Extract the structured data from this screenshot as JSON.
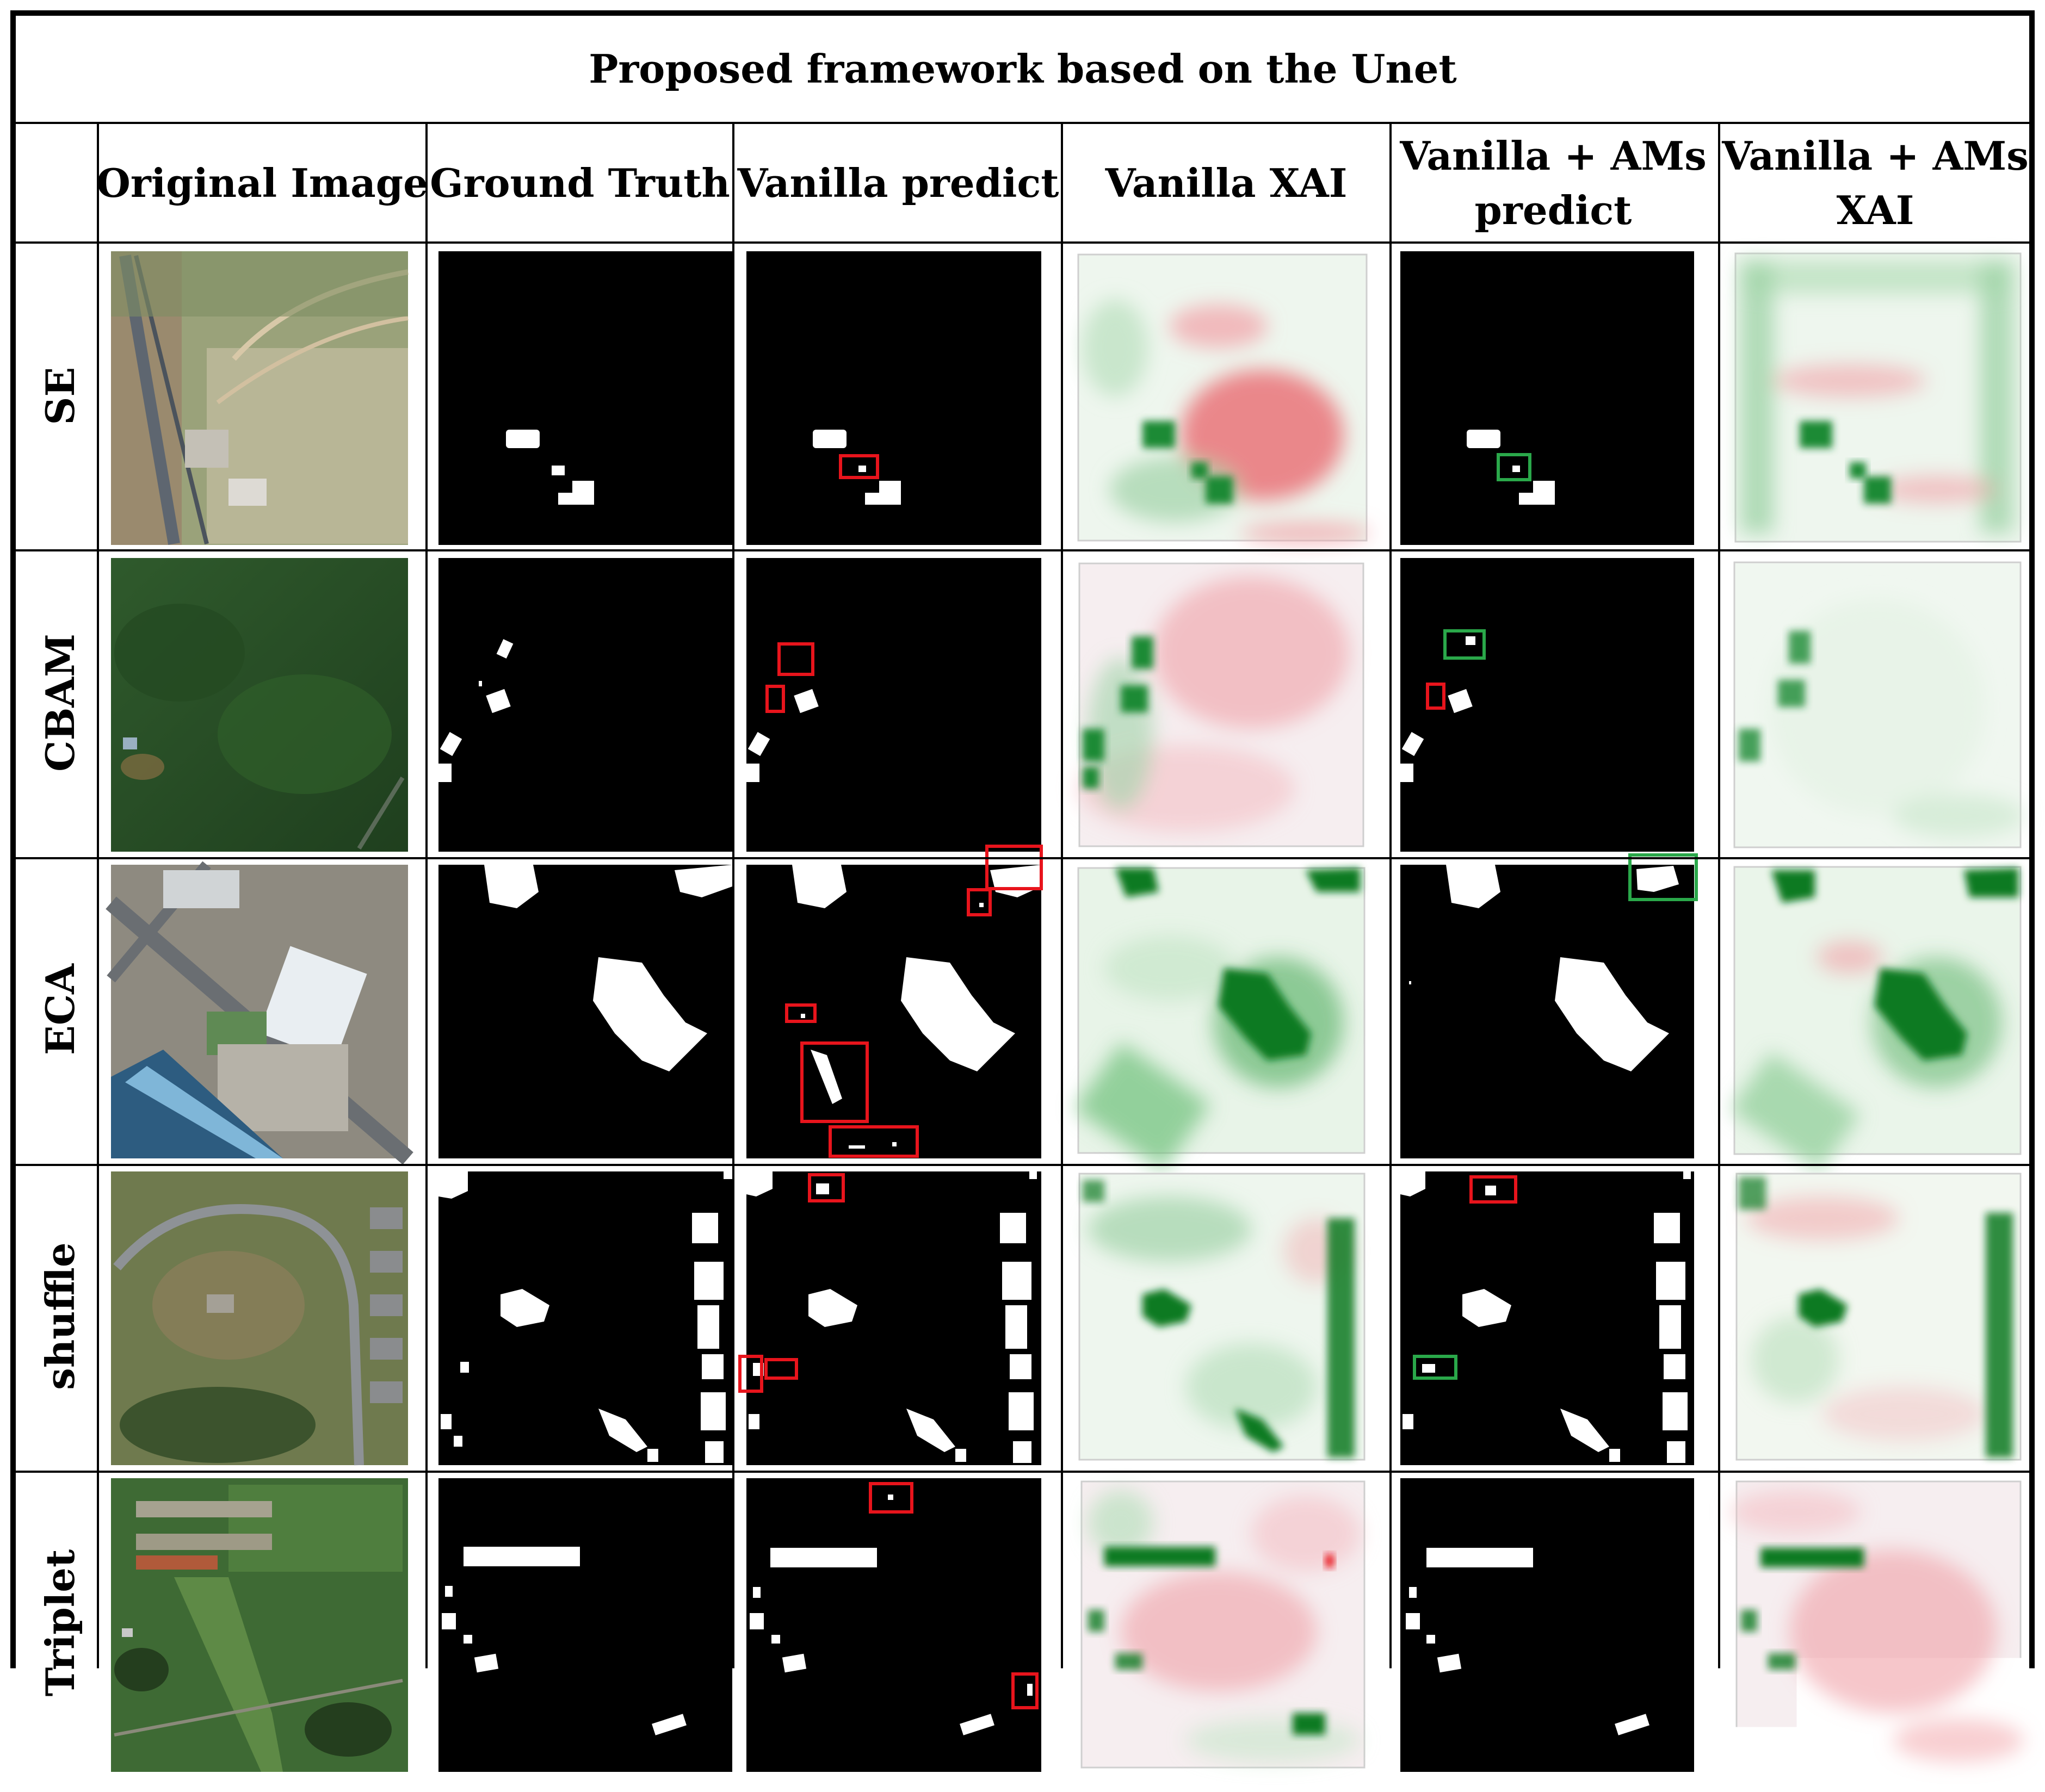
{
  "title": "Proposed framework based on the Unet",
  "columns": [
    {
      "lines": [
        "Original Image"
      ]
    },
    {
      "lines": [
        "Ground Truth"
      ]
    },
    {
      "lines": [
        "Vanilla predict"
      ]
    },
    {
      "lines": [
        "Vanilla XAI"
      ]
    },
    {
      "lines": [
        "Vanilla + AMs",
        "predict"
      ]
    },
    {
      "lines": [
        "Vanilla + AMs",
        "XAI"
      ]
    }
  ],
  "rows": [
    {
      "label": "SE"
    },
    {
      "label": "CBAM"
    },
    {
      "label": "ECA"
    },
    {
      "label": "shuffle"
    },
    {
      "label": "Triplet"
    }
  ],
  "colors": {
    "error_box": "#e8141c",
    "correct_box": "#2aa84a",
    "xai_positive": "#0a7a20",
    "xai_negative": "#e8404a"
  }
}
